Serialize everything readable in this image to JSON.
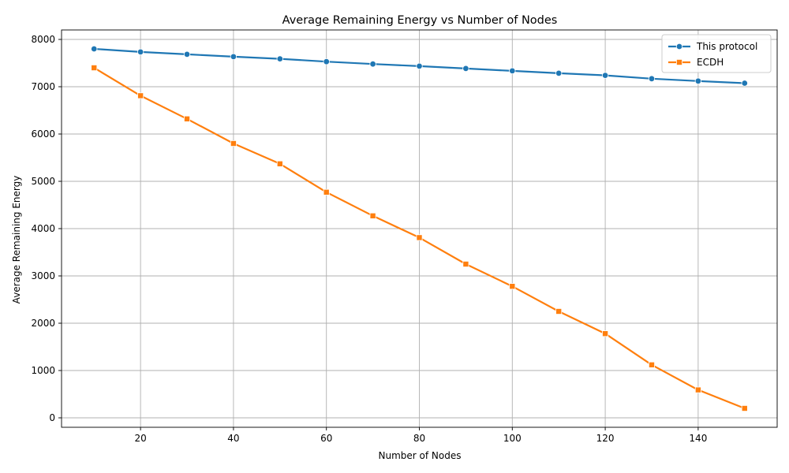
{
  "chart_data": {
    "type": "line",
    "title": "Average Remaining Energy vs Number of Nodes",
    "xlabel": "Number of Nodes",
    "ylabel": "Average Remaining Energy",
    "x": [
      10,
      20,
      30,
      40,
      50,
      60,
      70,
      80,
      90,
      100,
      110,
      120,
      130,
      140,
      150
    ],
    "xlim": [
      3,
      157
    ],
    "ylim": [
      -200,
      8200
    ],
    "xticks": [
      20,
      40,
      60,
      80,
      100,
      120,
      140
    ],
    "yticks": [
      0,
      1000,
      2000,
      3000,
      4000,
      5000,
      6000,
      7000,
      8000
    ],
    "grid": true,
    "legend_position": "top-right",
    "series": [
      {
        "name": "This protocol",
        "color": "#1f77b4",
        "marker": "circle",
        "values": [
          7800,
          7735,
          7685,
          7635,
          7590,
          7530,
          7480,
          7435,
          7385,
          7335,
          7285,
          7240,
          7170,
          7120,
          7075
        ]
      },
      {
        "name": "ECDH",
        "color": "#ff7f0e",
        "marker": "square",
        "values": [
          7400,
          6810,
          6320,
          5800,
          5370,
          4770,
          4270,
          3810,
          3250,
          2780,
          2250,
          1780,
          1120,
          590,
          200
        ]
      }
    ]
  }
}
